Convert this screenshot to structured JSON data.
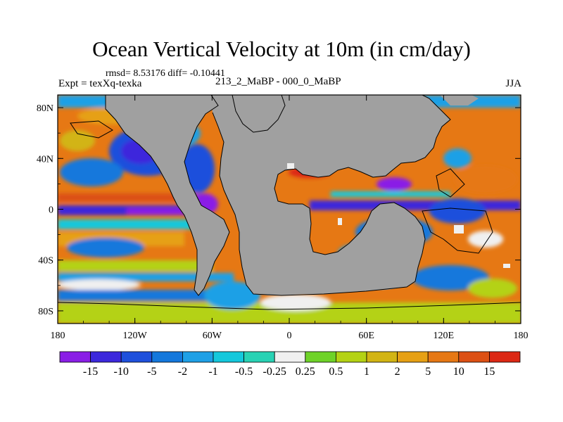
{
  "title": "Ocean Vertical Velocity at 10m (in cm/day)",
  "stats": "rmsd= 8.53176 diff= -0.10441",
  "experiment": "Expt = texXq-texka",
  "difference_label": "213_2_MaBP - 000_0_MaBP",
  "season": "JJA",
  "land_color": "#a0a0a0",
  "colorbar": {
    "colors": [
      "#8a1ee6",
      "#3c28dc",
      "#1e50dc",
      "#1478dc",
      "#1ea0e6",
      "#14c8dc",
      "#28d2b4",
      "#f0f0f0",
      "#6ed228",
      "#b4d214",
      "#d2b414",
      "#e6a014",
      "#e67814",
      "#dc5014",
      "#dc2814"
    ],
    "labels": [
      "-15",
      "-10",
      "-5",
      "-2",
      "-1",
      "-0.5",
      "-0.25",
      "0.25",
      "0.5",
      "1",
      "2",
      "5",
      "10",
      "15"
    ]
  },
  "axes": {
    "x_ticks": [
      {
        "lon": -180,
        "label": "180"
      },
      {
        "lon": -120,
        "label": "120W"
      },
      {
        "lon": -60,
        "label": "60W"
      },
      {
        "lon": 0,
        "label": "0"
      },
      {
        "lon": 60,
        "label": "60E"
      },
      {
        "lon": 120,
        "label": "120E"
      },
      {
        "lon": 180,
        "label": "180"
      }
    ],
    "y_ticks": [
      {
        "lat": 80,
        "label": "80N"
      },
      {
        "lat": 40,
        "label": "40N"
      },
      {
        "lat": 0,
        "label": "0"
      },
      {
        "lat": -40,
        "label": "40S"
      },
      {
        "lat": -80,
        "label": "80S"
      }
    ],
    "lon_range": [
      -180,
      180
    ],
    "lat_range": [
      -90,
      90
    ]
  }
}
